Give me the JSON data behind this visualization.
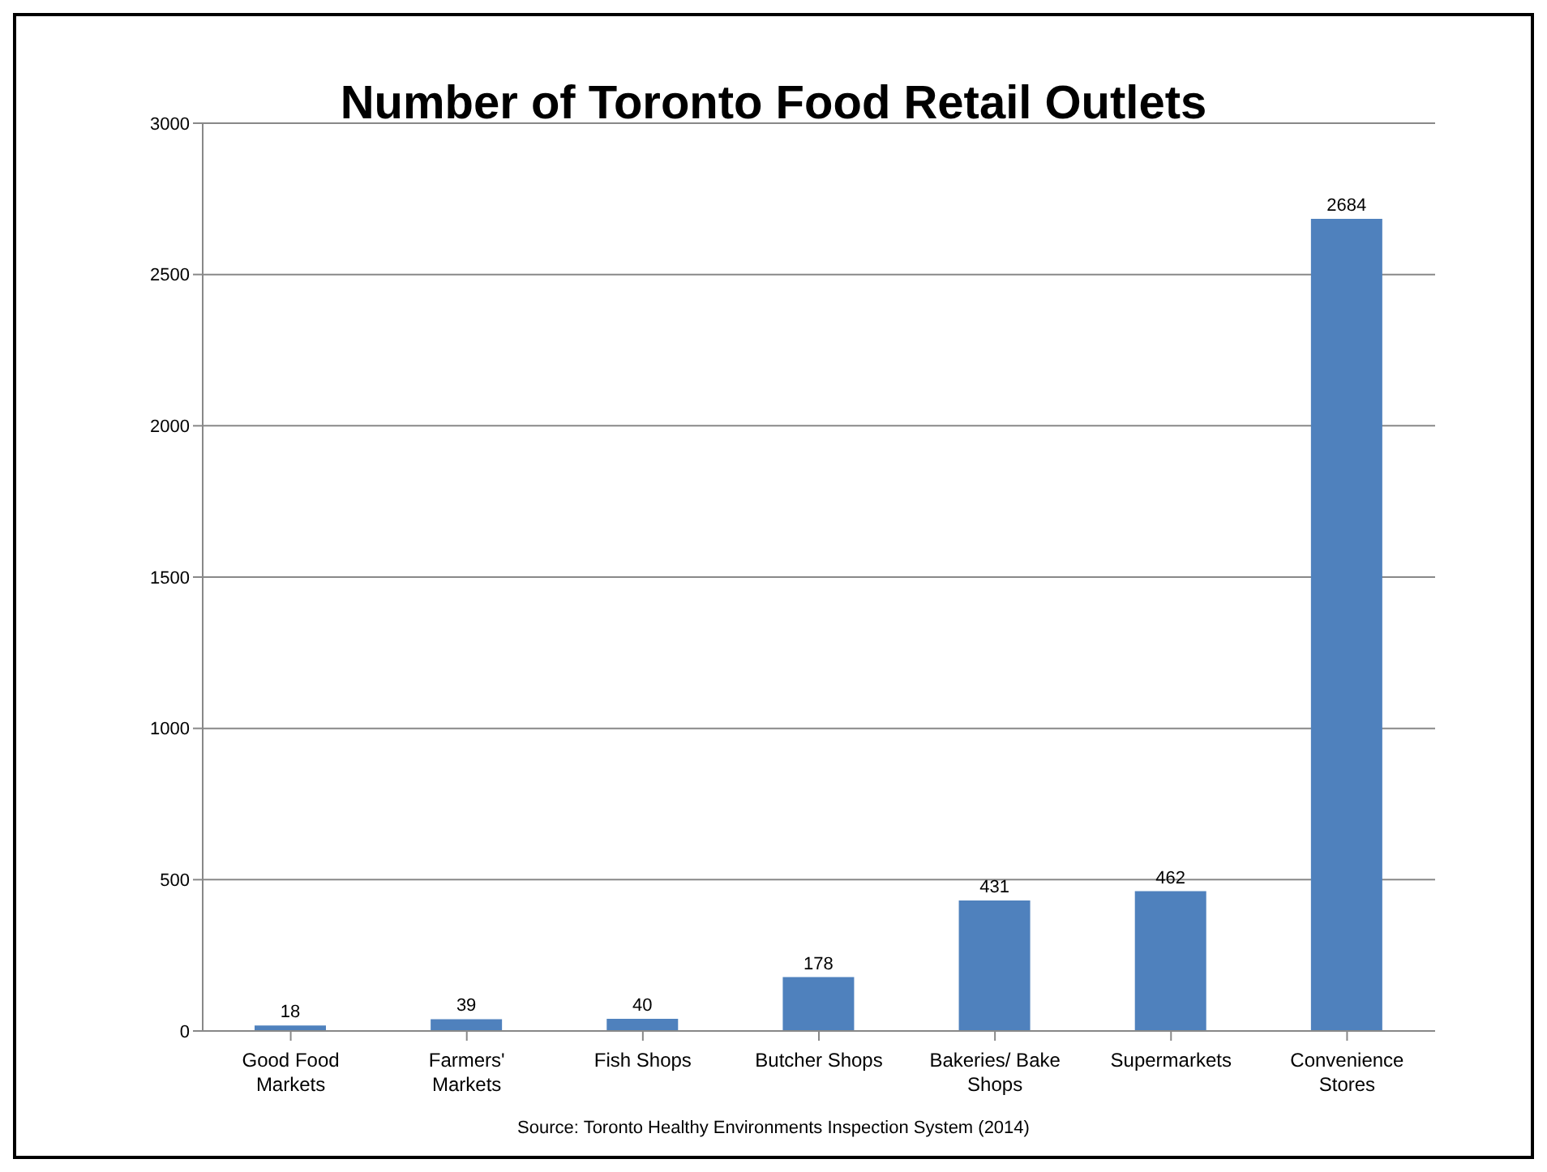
{
  "chart_data": {
    "type": "bar",
    "title": "Number of Toronto Food Retail Outlets",
    "categories": [
      "Good Food Markets",
      "Farmers' Markets",
      "Fish Shops",
      "Butcher Shops",
      "Bakeries/ Bake Shops",
      "Supermarkets",
      "Convenience Stores"
    ],
    "values": [
      18,
      39,
      40,
      178,
      431,
      462,
      2684
    ],
    "color": "#4f81bd",
    "ylim": [
      0,
      3000
    ],
    "yticks": [
      0,
      500,
      1000,
      1500,
      2000,
      2500,
      3000
    ],
    "grid": "y",
    "data_labels": true,
    "legend": false,
    "annotations": [
      "Source: Toronto Healthy Environments Inspection System (2014)"
    ]
  }
}
